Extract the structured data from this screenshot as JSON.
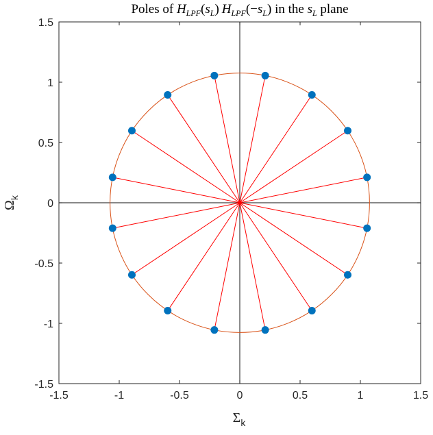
{
  "chart_data": {
    "type": "scatter",
    "title": "Poles of H_LPF(s_L) H_LPF(−s_L) in the s_L plane",
    "title_parts": {
      "prefix": "Poles of ",
      "h1": "H",
      "h1_sub": "LPF",
      "arg1_open": "(",
      "arg1_s": "s",
      "arg1_sub": "L",
      "arg1_close": ")",
      "h2": "H",
      "h2_sub": "LPF",
      "arg2_open": "(−",
      "arg2_s": "s",
      "arg2_sub": "L",
      "arg2_close": ")",
      "middle": " in the ",
      "plane_s": "s",
      "plane_sub": "L",
      "suffix": " plane"
    },
    "xlabel": "Σ",
    "xlabel_sub": "k",
    "ylabel": "Ω",
    "ylabel_sub": "k",
    "xlim": [
      -1.5,
      1.5
    ],
    "ylim": [
      -1.5,
      1.5
    ],
    "xticks": [
      -1.5,
      -1,
      -0.5,
      0,
      0.5,
      1,
      1.5
    ],
    "yticks": [
      -1.5,
      -1,
      -0.5,
      0,
      0.5,
      1,
      1.5
    ],
    "xtick_labels": [
      "-1.5",
      "-1",
      "-0.5",
      "0",
      "0.5",
      "1",
      "1.5"
    ],
    "ytick_labels": [
      "-1.5",
      "-1",
      "-0.5",
      "0",
      "0.5",
      "1",
      "1.5"
    ],
    "circle_radius": 1.076,
    "grid": false,
    "axes_through_origin": true,
    "points": [
      {
        "x": 1.055,
        "y": 0.211
      },
      {
        "x": 0.895,
        "y": 0.598
      },
      {
        "x": 0.598,
        "y": 0.895
      },
      {
        "x": 0.211,
        "y": 1.055
      },
      {
        "x": -0.211,
        "y": 1.055
      },
      {
        "x": -0.598,
        "y": 0.895
      },
      {
        "x": -0.895,
        "y": 0.598
      },
      {
        "x": -1.055,
        "y": 0.211
      },
      {
        "x": -1.055,
        "y": -0.211
      },
      {
        "x": -0.895,
        "y": -0.598
      },
      {
        "x": -0.598,
        "y": -0.895
      },
      {
        "x": -0.211,
        "y": -1.055
      },
      {
        "x": 0.211,
        "y": -1.055
      },
      {
        "x": 0.598,
        "y": -0.895
      },
      {
        "x": 0.895,
        "y": -0.598
      },
      {
        "x": 1.055,
        "y": -0.211
      }
    ],
    "colors": {
      "points": "#0072BD",
      "rays": "#FF0000",
      "circle": "#D95319",
      "axes_box": "#262626",
      "origin_lines": "#404040"
    }
  }
}
